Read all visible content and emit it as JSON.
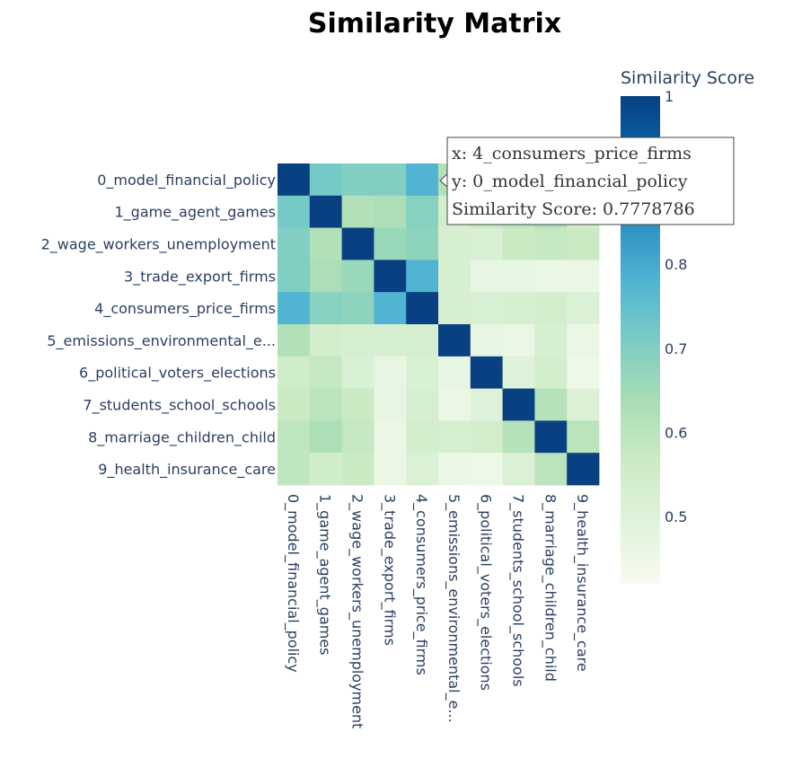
{
  "chart_data": {
    "type": "heatmap",
    "title": "Similarity Matrix",
    "x": [
      "0_model_financial_policy",
      "1_game_agent_games",
      "2_wage_workers_unemployment",
      "3_trade_export_firms",
      "4_consumers_price_firms",
      "5_emissions_environmental_e...",
      "6_political_voters_elections",
      "7_students_school_schools",
      "8_marriage_children_child",
      "9_health_insurance_care"
    ],
    "y": [
      "0_model_financial_policy",
      "1_game_agent_games",
      "2_wage_workers_unemployment",
      "3_trade_export_firms",
      "4_consumers_price_firms",
      "5_emissions_environmental_e...",
      "6_political_voters_elections",
      "7_students_school_schools",
      "8_marriage_children_child",
      "9_health_insurance_care"
    ],
    "z": [
      [
        1.0,
        0.72,
        0.7,
        0.7,
        0.78,
        0.62,
        0.55,
        0.57,
        0.59,
        0.59
      ],
      [
        0.72,
        1.0,
        0.62,
        0.63,
        0.69,
        0.54,
        0.58,
        0.6,
        0.63,
        0.55
      ],
      [
        0.7,
        0.62,
        1.0,
        0.66,
        0.68,
        0.53,
        0.52,
        0.57,
        0.58,
        0.57
      ],
      [
        0.7,
        0.63,
        0.66,
        1.0,
        0.78,
        0.53,
        0.47,
        0.47,
        0.46,
        0.46
      ],
      [
        0.78,
        0.69,
        0.68,
        0.78,
        1.0,
        0.53,
        0.52,
        0.53,
        0.54,
        0.51
      ],
      [
        0.62,
        0.54,
        0.53,
        0.53,
        0.53,
        1.0,
        0.47,
        0.46,
        0.53,
        0.46
      ],
      [
        0.55,
        0.58,
        0.52,
        0.47,
        0.52,
        0.47,
        1.0,
        0.5,
        0.54,
        0.45
      ],
      [
        0.57,
        0.6,
        0.57,
        0.47,
        0.53,
        0.46,
        0.5,
        1.0,
        0.61,
        0.51
      ],
      [
        0.59,
        0.63,
        0.58,
        0.46,
        0.54,
        0.53,
        0.54,
        0.61,
        1.0,
        0.6
      ],
      [
        0.59,
        0.55,
        0.57,
        0.46,
        0.51,
        0.46,
        0.45,
        0.51,
        0.6,
        1.0
      ]
    ],
    "zmin": 0.42,
    "zmax": 1.0,
    "colorscale": [
      [
        0.0,
        "#f7fcf0"
      ],
      [
        0.125,
        "#e0f3db"
      ],
      [
        0.25,
        "#ccebc5"
      ],
      [
        0.375,
        "#a8ddb5"
      ],
      [
        0.5,
        "#7bccc4"
      ],
      [
        0.625,
        "#4eb3d3"
      ],
      [
        0.75,
        "#2b8cbe"
      ],
      [
        0.875,
        "#0868ac"
      ],
      [
        1.0,
        "#084081"
      ]
    ],
    "colorbar": {
      "title": "Similarity Score",
      "tickvals": [
        0.5,
        0.6,
        0.7,
        0.8,
        1.0
      ],
      "ticktext": [
        "0.5",
        "0.6",
        "0.7",
        "0.8",
        "1"
      ]
    },
    "tooltip": {
      "lines": [
        "x: 4_consumers_price_firms",
        "y: 0_model_financial_policy",
        "Similarity Score: 0.7778786"
      ],
      "row": 0,
      "col": 4
    }
  }
}
